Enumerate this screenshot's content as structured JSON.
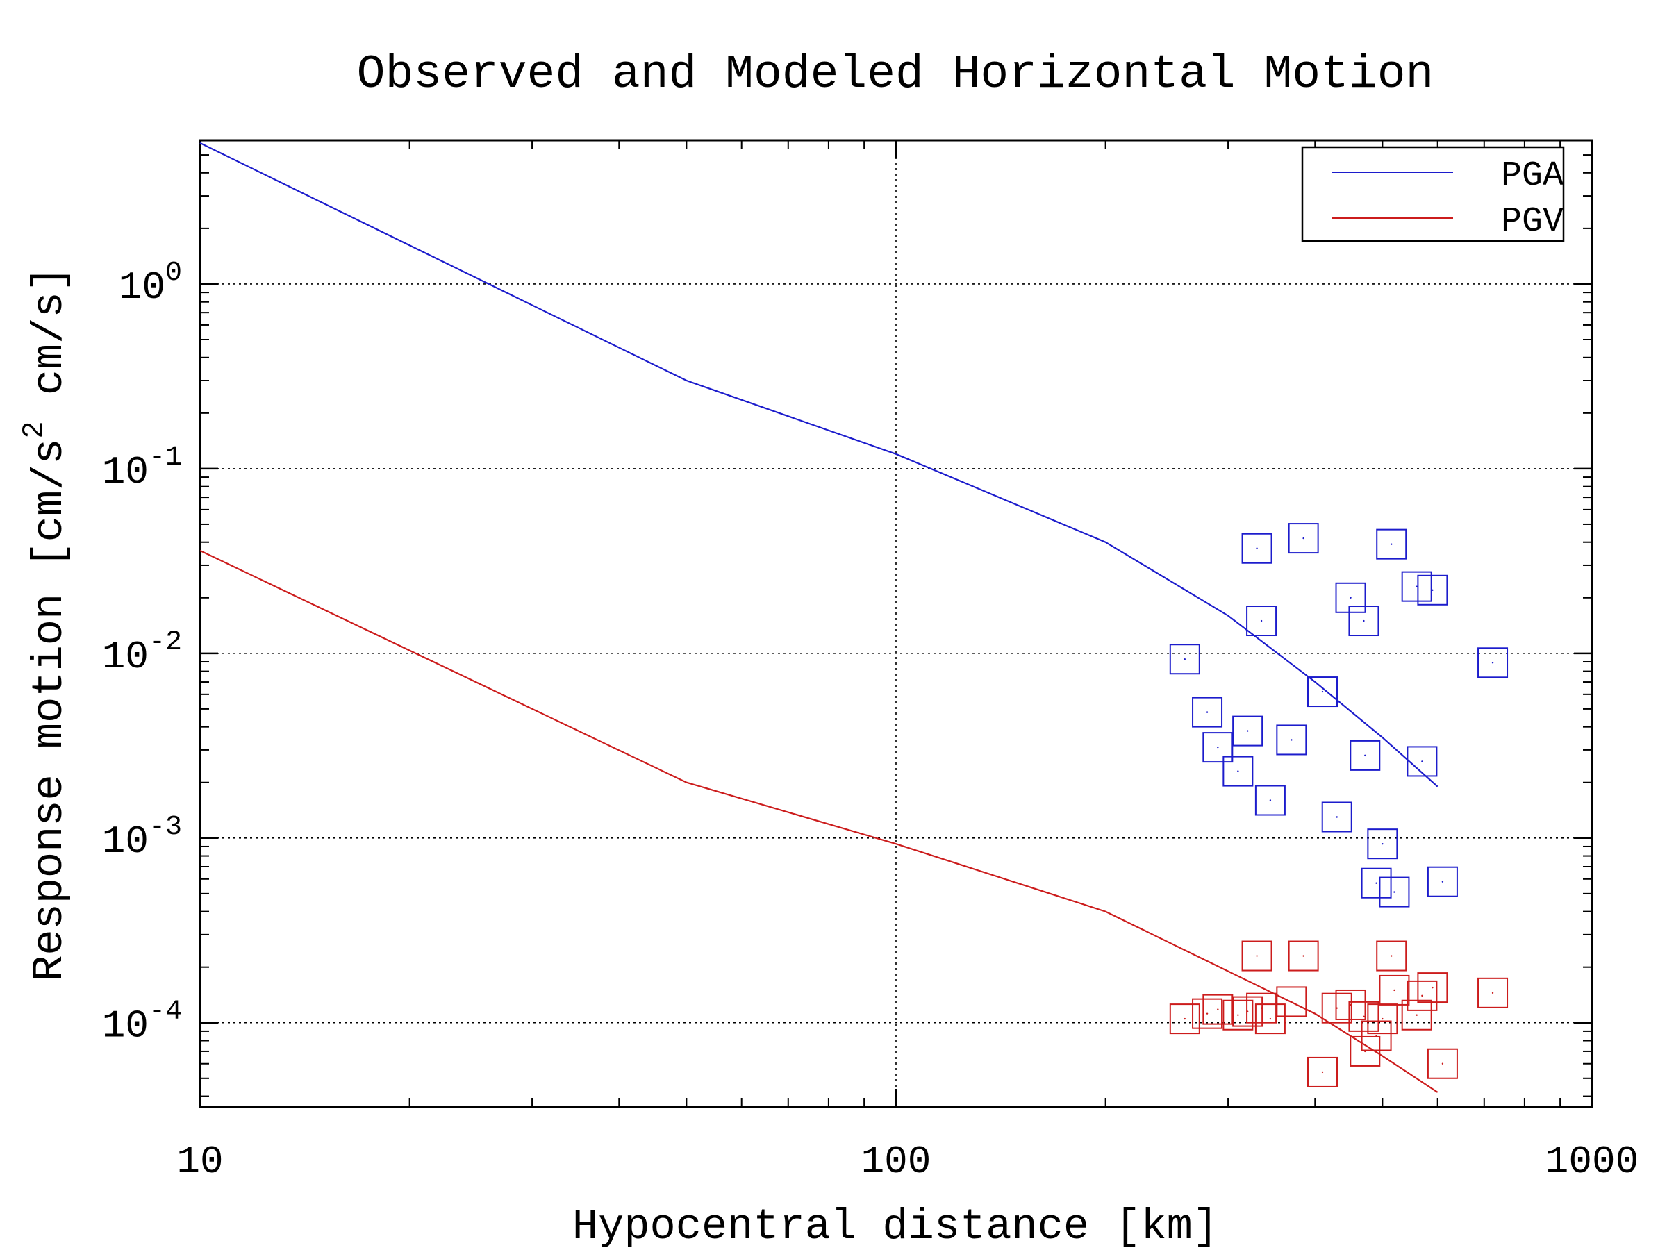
{
  "chart_data": {
    "type": "line",
    "title": "Observed and Modeled Horizontal Motion",
    "xlabel": "Hypocentral distance [km]",
    "ylabel": {
      "prefix": "Response motion  [cm/s",
      "sup": "2",
      "suffix": "  cm/s]"
    },
    "x_scale": "log",
    "y_scale": "log",
    "xlim": [
      10,
      1000
    ],
    "ylim": [
      3.5e-05,
      6
    ],
    "grid": true,
    "legend_position": "top-right",
    "x_ticks": [
      {
        "value": 10,
        "label": "10"
      },
      {
        "value": 100,
        "label": "100"
      },
      {
        "value": 1000,
        "label": "1000"
      }
    ],
    "y_ticks": [
      {
        "value": 1,
        "base": "10",
        "exp": "0"
      },
      {
        "value": 0.1,
        "base": "10",
        "exp": "-1"
      },
      {
        "value": 0.01,
        "base": "10",
        "exp": "-2"
      },
      {
        "value": 0.001,
        "base": "10",
        "exp": "-3"
      },
      {
        "value": 0.0001,
        "base": "10",
        "exp": "-4"
      }
    ],
    "series": [
      {
        "name": "PGA",
        "color": "#1c1ccc",
        "curve": [
          [
            10,
            5.8
          ],
          [
            50,
            0.3
          ],
          [
            100,
            0.12
          ],
          [
            200,
            0.04
          ],
          [
            300,
            0.016
          ],
          [
            400,
            0.007
          ],
          [
            500,
            0.0035
          ],
          [
            600,
            0.0019
          ]
        ],
        "observed": [
          [
            260,
            0.0093
          ],
          [
            280,
            0.0048
          ],
          [
            290,
            0.0031
          ],
          [
            310,
            0.0023
          ],
          [
            320,
            0.0038
          ],
          [
            330,
            0.037
          ],
          [
            335,
            0.015
          ],
          [
            345,
            0.0016
          ],
          [
            370,
            0.0034
          ],
          [
            385,
            0.042
          ],
          [
            410,
            0.0062
          ],
          [
            430,
            0.0013
          ],
          [
            450,
            0.02
          ],
          [
            470,
            0.015
          ],
          [
            472,
            0.0028
          ],
          [
            490,
            0.00057
          ],
          [
            500,
            0.00093
          ],
          [
            520,
            0.00051
          ],
          [
            515,
            0.039
          ],
          [
            560,
            0.023
          ],
          [
            570,
            0.0026
          ],
          [
            590,
            0.022
          ],
          [
            610,
            0.00058
          ],
          [
            720,
            0.0089
          ]
        ]
      },
      {
        "name": "PGV",
        "color": "#cc1c1c",
        "curve": [
          [
            10,
            0.036
          ],
          [
            50,
            0.002
          ],
          [
            100,
            0.00093
          ],
          [
            200,
            0.0004
          ],
          [
            300,
            0.00019
          ],
          [
            400,
            0.000112
          ],
          [
            500,
            6.6e-05
          ],
          [
            600,
            4.2e-05
          ]
        ],
        "observed": [
          [
            260,
            0.000105
          ],
          [
            280,
            0.000112
          ],
          [
            290,
            0.000118
          ],
          [
            310,
            0.00011
          ],
          [
            320,
            0.000115
          ],
          [
            330,
            0.00023
          ],
          [
            335,
            0.00012
          ],
          [
            345,
            0.000105
          ],
          [
            370,
            0.00013
          ],
          [
            385,
            0.00023
          ],
          [
            410,
            5.4e-05
          ],
          [
            430,
            0.00012
          ],
          [
            450,
            0.000125
          ],
          [
            470,
            0.000108
          ],
          [
            472,
            7e-05
          ],
          [
            490,
            8.5e-05
          ],
          [
            500,
            0.000105
          ],
          [
            520,
            0.00015
          ],
          [
            515,
            0.00023
          ],
          [
            560,
            0.00011
          ],
          [
            570,
            0.00014
          ],
          [
            590,
            0.000155
          ],
          [
            610,
            6e-05
          ],
          [
            720,
            0.000145
          ]
        ]
      }
    ]
  }
}
